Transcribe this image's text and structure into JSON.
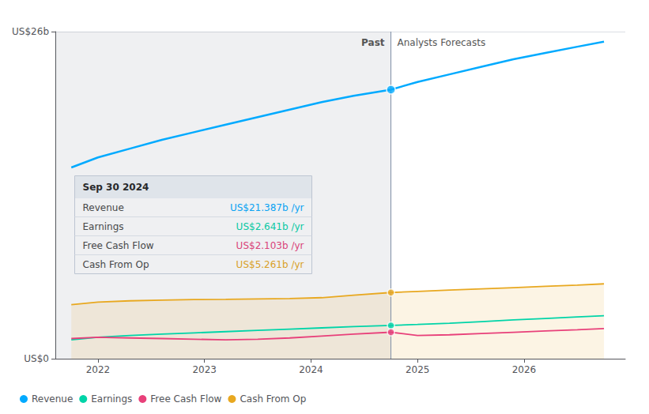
{
  "chart_data": {
    "type": "line",
    "x": [
      2021.75,
      2022.0,
      2022.3,
      2022.6,
      2022.9,
      2023.2,
      2023.5,
      2023.8,
      2024.1,
      2024.4,
      2024.75,
      2025.0,
      2025.3,
      2025.6,
      2025.9,
      2026.2,
      2026.5,
      2026.75
    ],
    "series": [
      {
        "name": "Revenue",
        "color": "#00aaff",
        "values": [
          15.2,
          16.0,
          16.7,
          17.4,
          18.0,
          18.6,
          19.2,
          19.8,
          20.4,
          20.9,
          21.387,
          22.0,
          22.6,
          23.2,
          23.8,
          24.3,
          24.8,
          25.2
        ]
      },
      {
        "name": "Earnings",
        "color": "#00d4a8",
        "values": [
          1.5,
          1.7,
          1.85,
          1.95,
          2.05,
          2.15,
          2.25,
          2.35,
          2.45,
          2.55,
          2.641,
          2.72,
          2.82,
          2.95,
          3.08,
          3.2,
          3.32,
          3.42
        ]
      },
      {
        "name": "Free Cash Flow",
        "color": "#e8407a",
        "values": [
          1.6,
          1.7,
          1.65,
          1.6,
          1.55,
          1.5,
          1.55,
          1.65,
          1.8,
          1.95,
          2.103,
          1.85,
          1.9,
          2.0,
          2.1,
          2.2,
          2.3,
          2.4
        ]
      },
      {
        "name": "Cash From Op",
        "color": "#e8a820",
        "values": [
          4.3,
          4.5,
          4.6,
          4.65,
          4.7,
          4.72,
          4.75,
          4.78,
          4.85,
          5.05,
          5.261,
          5.35,
          5.45,
          5.55,
          5.65,
          5.75,
          5.85,
          5.95
        ]
      }
    ],
    "xlim": [
      2021.6,
      2026.95
    ],
    "xticks": [
      2022,
      2023,
      2024,
      2025,
      2026
    ],
    "ylim": [
      0,
      26
    ],
    "yticks": [
      {
        "value": 0,
        "label": "US$0"
      },
      {
        "value": 26,
        "label": "US$26b"
      }
    ],
    "grid": true,
    "legend": "lower left",
    "divider": {
      "x": 2024.75,
      "past_label": "Past",
      "future_label": "Analysts Forecasts"
    },
    "tooltip": {
      "title": "Sep 30 2024",
      "items": [
        {
          "label": "Revenue",
          "value_label": "US$21.387b /yr",
          "color": "#00aaff"
        },
        {
          "label": "Earnings",
          "value_label": "US$2.641b /yr",
          "color": "#00d4a8"
        },
        {
          "label": "Free Cash Flow",
          "value_label": "US$2.103b /yr",
          "color": "#e8407a"
        },
        {
          "label": "Cash From Op",
          "value_label": "US$5.261b /yr",
          "color": "#e8a820"
        }
      ]
    }
  }
}
